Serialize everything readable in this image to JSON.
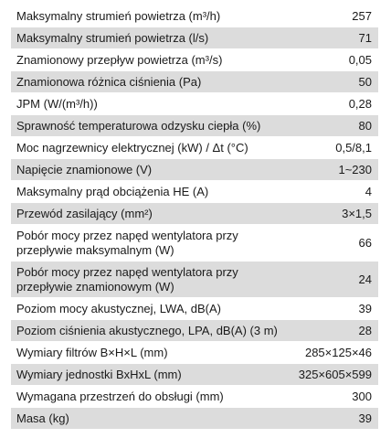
{
  "rows": [
    {
      "label": "Maksymalny strumień powietrza (m³/h)",
      "value": "257"
    },
    {
      "label": "Maksymalny strumień powietrza (l/s)",
      "value": "71"
    },
    {
      "label": "Znamionowy przepływ powietrza (m³/s)",
      "value": "0,05"
    },
    {
      "label": "Znamionowa różnica ciśnienia (Pa)",
      "value": "50"
    },
    {
      "label": "JPM (W/(m³/h))",
      "value": "0,28"
    },
    {
      "label": "Sprawność temperaturowa odzysku ciepła (%)",
      "value": "80"
    },
    {
      "label": "Moc nagrzewnicy elektrycznej (kW) / Δt (°C)",
      "value": "0,5/8,1"
    },
    {
      "label": "Napięcie znamionowe (V)",
      "value": "1~230"
    },
    {
      "label": "Maksymalny prąd obciążenia HE (A)",
      "value": "4"
    },
    {
      "label": "Przewód zasilający (mm²)",
      "value": "3×1,5"
    },
    {
      "label": "Pobór mocy przez napęd wentylatora przy przepływie maksymalnym (W)",
      "value": "66"
    },
    {
      "label": "Pobór mocy przez napęd wentylatora przy przepływie znamionowym (W)",
      "value": "24"
    },
    {
      "label": "Poziom mocy akustycznej, LWA, dB(A)",
      "value": "39"
    },
    {
      "label": "Poziom ciśnienia akustycznego, LPA, dB(A) (3 m)",
      "value": "28"
    },
    {
      "label": "Wymiary filtrów B×H×L (mm)",
      "value": "285×125×46"
    },
    {
      "label": "Wymiary jednostki BxHxL (mm)",
      "value": "325×605×599"
    },
    {
      "label": "Wymagana przestrzeń do obsługi (mm)",
      "value": "300"
    },
    {
      "label": "Masa (kg)",
      "value": "39"
    }
  ],
  "colors": {
    "row_light": "#ffffff",
    "row_dark": "#dcdcdc"
  }
}
